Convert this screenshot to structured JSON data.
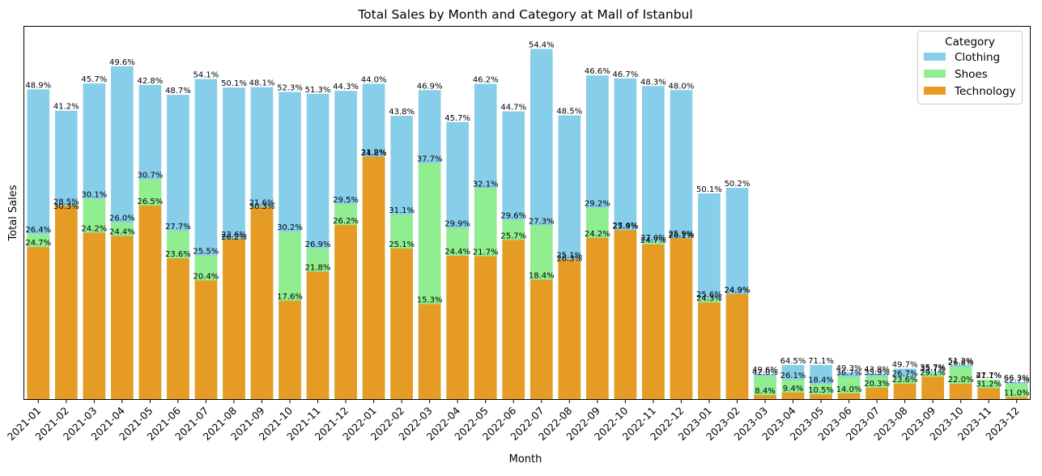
{
  "chart_data": {
    "type": "bar",
    "stacked": false,
    "title": "Total Sales by Month and Category at Mall of Istanbul",
    "xlabel": "Month",
    "ylabel": "Total Sales",
    "legend": {
      "title": "Category",
      "position": "top-right"
    },
    "grid": false,
    "categories": [
      "2021-01",
      "2021-02",
      "2021-03",
      "2021-04",
      "2021-05",
      "2021-06",
      "2021-07",
      "2021-08",
      "2021-09",
      "2021-10",
      "2021-11",
      "2021-12",
      "2022-01",
      "2022-02",
      "2022-03",
      "2022-04",
      "2022-05",
      "2022-06",
      "2022-07",
      "2022-08",
      "2022-09",
      "2022-10",
      "2022-11",
      "2022-12",
      "2023-01",
      "2023-02",
      "2023-03",
      "2023-04",
      "2023-05",
      "2023-06",
      "2023-07",
      "2023-08",
      "2023-09",
      "2023-10",
      "2023-11",
      "2023-12"
    ],
    "ylim": [
      0,
      100
    ],
    "series": [
      {
        "name": "Clothing",
        "color": "#87ceeb",
        "values": [
          84.5,
          78.7,
          86.1,
          90.8,
          85.7,
          83.0,
          87.3,
          85.0,
          85.1,
          83.8,
          83.3,
          84.1,
          86.0,
          77.3,
          84.3,
          75.6,
          86.0,
          78.5,
          95.5,
          77.4,
          88.3,
          87.5,
          85.4,
          84.3,
          56.2,
          57.7,
          7.0,
          9.5,
          9.5,
          7.5,
          7.2,
          8.5,
          7.7,
          9.5,
          5.5,
          4.8
        ],
        "labels": [
          "48.9%",
          "41.2%",
          "45.7%",
          "49.6%",
          "42.8%",
          "48.7%",
          "54.1%",
          "50.1%",
          "48.1%",
          "52.3%",
          "51.3%",
          "44.3%",
          "44.0%",
          "43.8%",
          "46.9%",
          "45.7%",
          "46.2%",
          "44.7%",
          "54.4%",
          "48.5%",
          "46.6%",
          "46.7%",
          "48.3%",
          "48.0%",
          "50.1%",
          "50.2%",
          "49.6%",
          "64.5%",
          "71.1%",
          "49.3%",
          "43.8%",
          "49.7%",
          "35.7%",
          "51.2%",
          "41.7%",
          "66.3%"
        ]
      },
      {
        "name": "Shoes",
        "color": "#90ee90",
        "values": [
          45.2,
          51.5,
          54.7,
          48.3,
          60.0,
          46.0,
          39.3,
          43.2,
          51.5,
          45.8,
          41.2,
          53.3,
          66.1,
          50.4,
          64.4,
          46.8,
          57.6,
          49.0,
          47.5,
          37.3,
          52.3,
          46.3,
          43.0,
          43.6,
          27.5,
          28.7,
          6.4,
          5.5,
          4.3,
          6.3,
          6.4,
          6.1,
          7.4,
          9.0,
          5.5,
          4.3
        ],
        "labels": [
          "26.4%",
          "30.3%",
          "30.1%",
          "26.0%",
          "30.7%",
          "27.7%",
          "25.5%",
          "26.2%",
          "30.3%",
          "30.2%",
          "26.9%",
          "29.5%",
          "34.8%",
          "31.1%",
          "37.7%",
          "29.9%",
          "32.1%",
          "29.6%",
          "27.3%",
          "26.3%",
          "29.2%",
          "27.4%",
          "27.0%",
          "26.1%",
          "25.6%",
          "24.9%",
          "42.0%",
          "26.1%",
          "18.4%",
          "36.7%",
          "35.9%",
          "26.7%",
          "35.7%",
          "26.8%",
          "27.1%",
          "22.7%"
        ]
      },
      {
        "name": "Technology",
        "color": "#e69c24",
        "values": [
          41.6,
          52.8,
          45.5,
          44.6,
          52.9,
          38.5,
          32.5,
          43.8,
          52.5,
          27.0,
          34.9,
          47.6,
          66.2,
          41.2,
          26.1,
          39.2,
          39.1,
          43.5,
          32.7,
          38.2,
          44.1,
          46.2,
          42.3,
          44.0,
          26.5,
          28.8,
          1.3,
          2.0,
          1.5,
          1.8,
          3.3,
          4.4,
          6.3,
          4.4,
          3.2,
          0.8
        ],
        "labels": [
          "24.7%",
          "28.5%",
          "24.2%",
          "24.4%",
          "26.5%",
          "23.6%",
          "20.4%",
          "23.6%",
          "21.6%",
          "17.6%",
          "21.8%",
          "26.2%",
          "21.2%",
          "25.1%",
          "15.3%",
          "24.4%",
          "21.7%",
          "25.7%",
          "18.4%",
          "25.1%",
          "24.2%",
          "25.9%",
          "24.7%",
          "25.9%",
          "24.3%",
          "24.9%",
          "8.4%",
          "9.4%",
          "10.5%",
          "14.0%",
          "20.3%",
          "23.6%",
          "29.1%",
          "22.0%",
          "31.2%",
          "11.0%"
        ]
      }
    ]
  }
}
